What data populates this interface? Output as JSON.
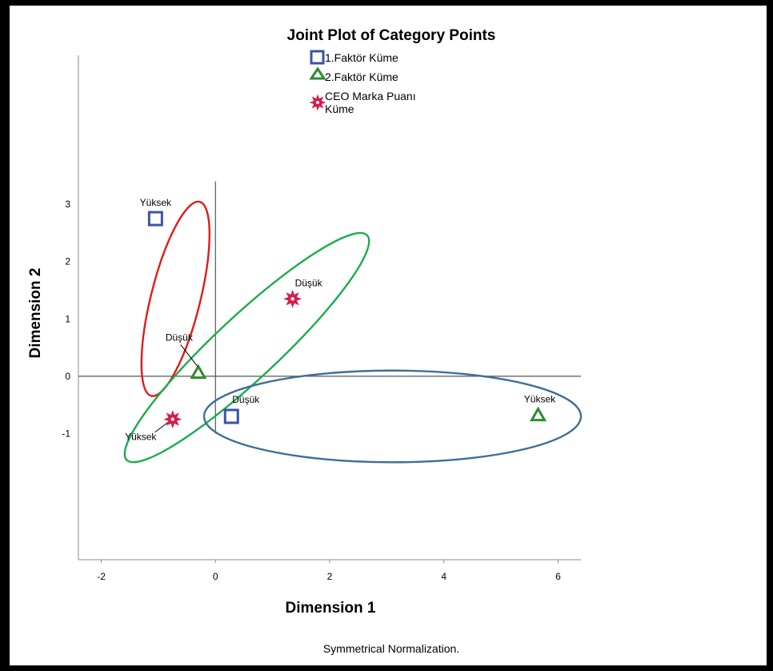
{
  "chart_data": {
    "type": "scatter",
    "title": "Joint Plot of Category Points",
    "xlabel": "Dimension 1",
    "ylabel": "Dimension 2",
    "footnote": "Symmetrical Normalization.",
    "xlim": [
      -2.4,
      6.4
    ],
    "ylim": [
      -3.2,
      5.6
    ],
    "xticks": [
      -2,
      0,
      2,
      4,
      6
    ],
    "yticks": [
      -1,
      0,
      1,
      2,
      3
    ],
    "legend_position": "top-center",
    "grid": false,
    "series": [
      {
        "name": "1.Faktör Küme",
        "marker": "square",
        "color": "#3a54a4",
        "points": [
          {
            "label": "Yüksek",
            "x": -1.05,
            "y": 2.75
          },
          {
            "label": "Düşük",
            "x": 0.28,
            "y": -0.7
          }
        ]
      },
      {
        "name": "2.Faktör Küme",
        "marker": "triangle",
        "color": "#2e8b2e",
        "points": [
          {
            "label": "Düşük",
            "x": -0.3,
            "y": 0.06
          },
          {
            "label": "Yüksek",
            "x": 5.65,
            "y": -0.68
          }
        ]
      },
      {
        "name": "CEO Marka Puanı Küme",
        "legend_lines": [
          "CEO Marka Puanı",
          "Küme"
        ],
        "marker": "star",
        "color": "#d81b4a",
        "points": [
          {
            "label": "Düşük",
            "x": 1.35,
            "y": 1.35
          },
          {
            "label": "Yüksek",
            "x": -0.75,
            "y": -0.75
          }
        ]
      }
    ],
    "ellipses": [
      {
        "color": "#e41a1a",
        "cx": -0.7,
        "cy": 1.35,
        "rx": 1.75,
        "ry": 0.43,
        "angle": -76
      },
      {
        "color": "#1aad4e",
        "cx": 0.55,
        "cy": 0.5,
        "rx": 2.88,
        "ry": 0.55,
        "angle": -43
      },
      {
        "color": "#3f6e96",
        "cx": 3.1,
        "cy": -0.7,
        "rx": 3.3,
        "ry": 0.8,
        "angle": 0
      }
    ]
  }
}
